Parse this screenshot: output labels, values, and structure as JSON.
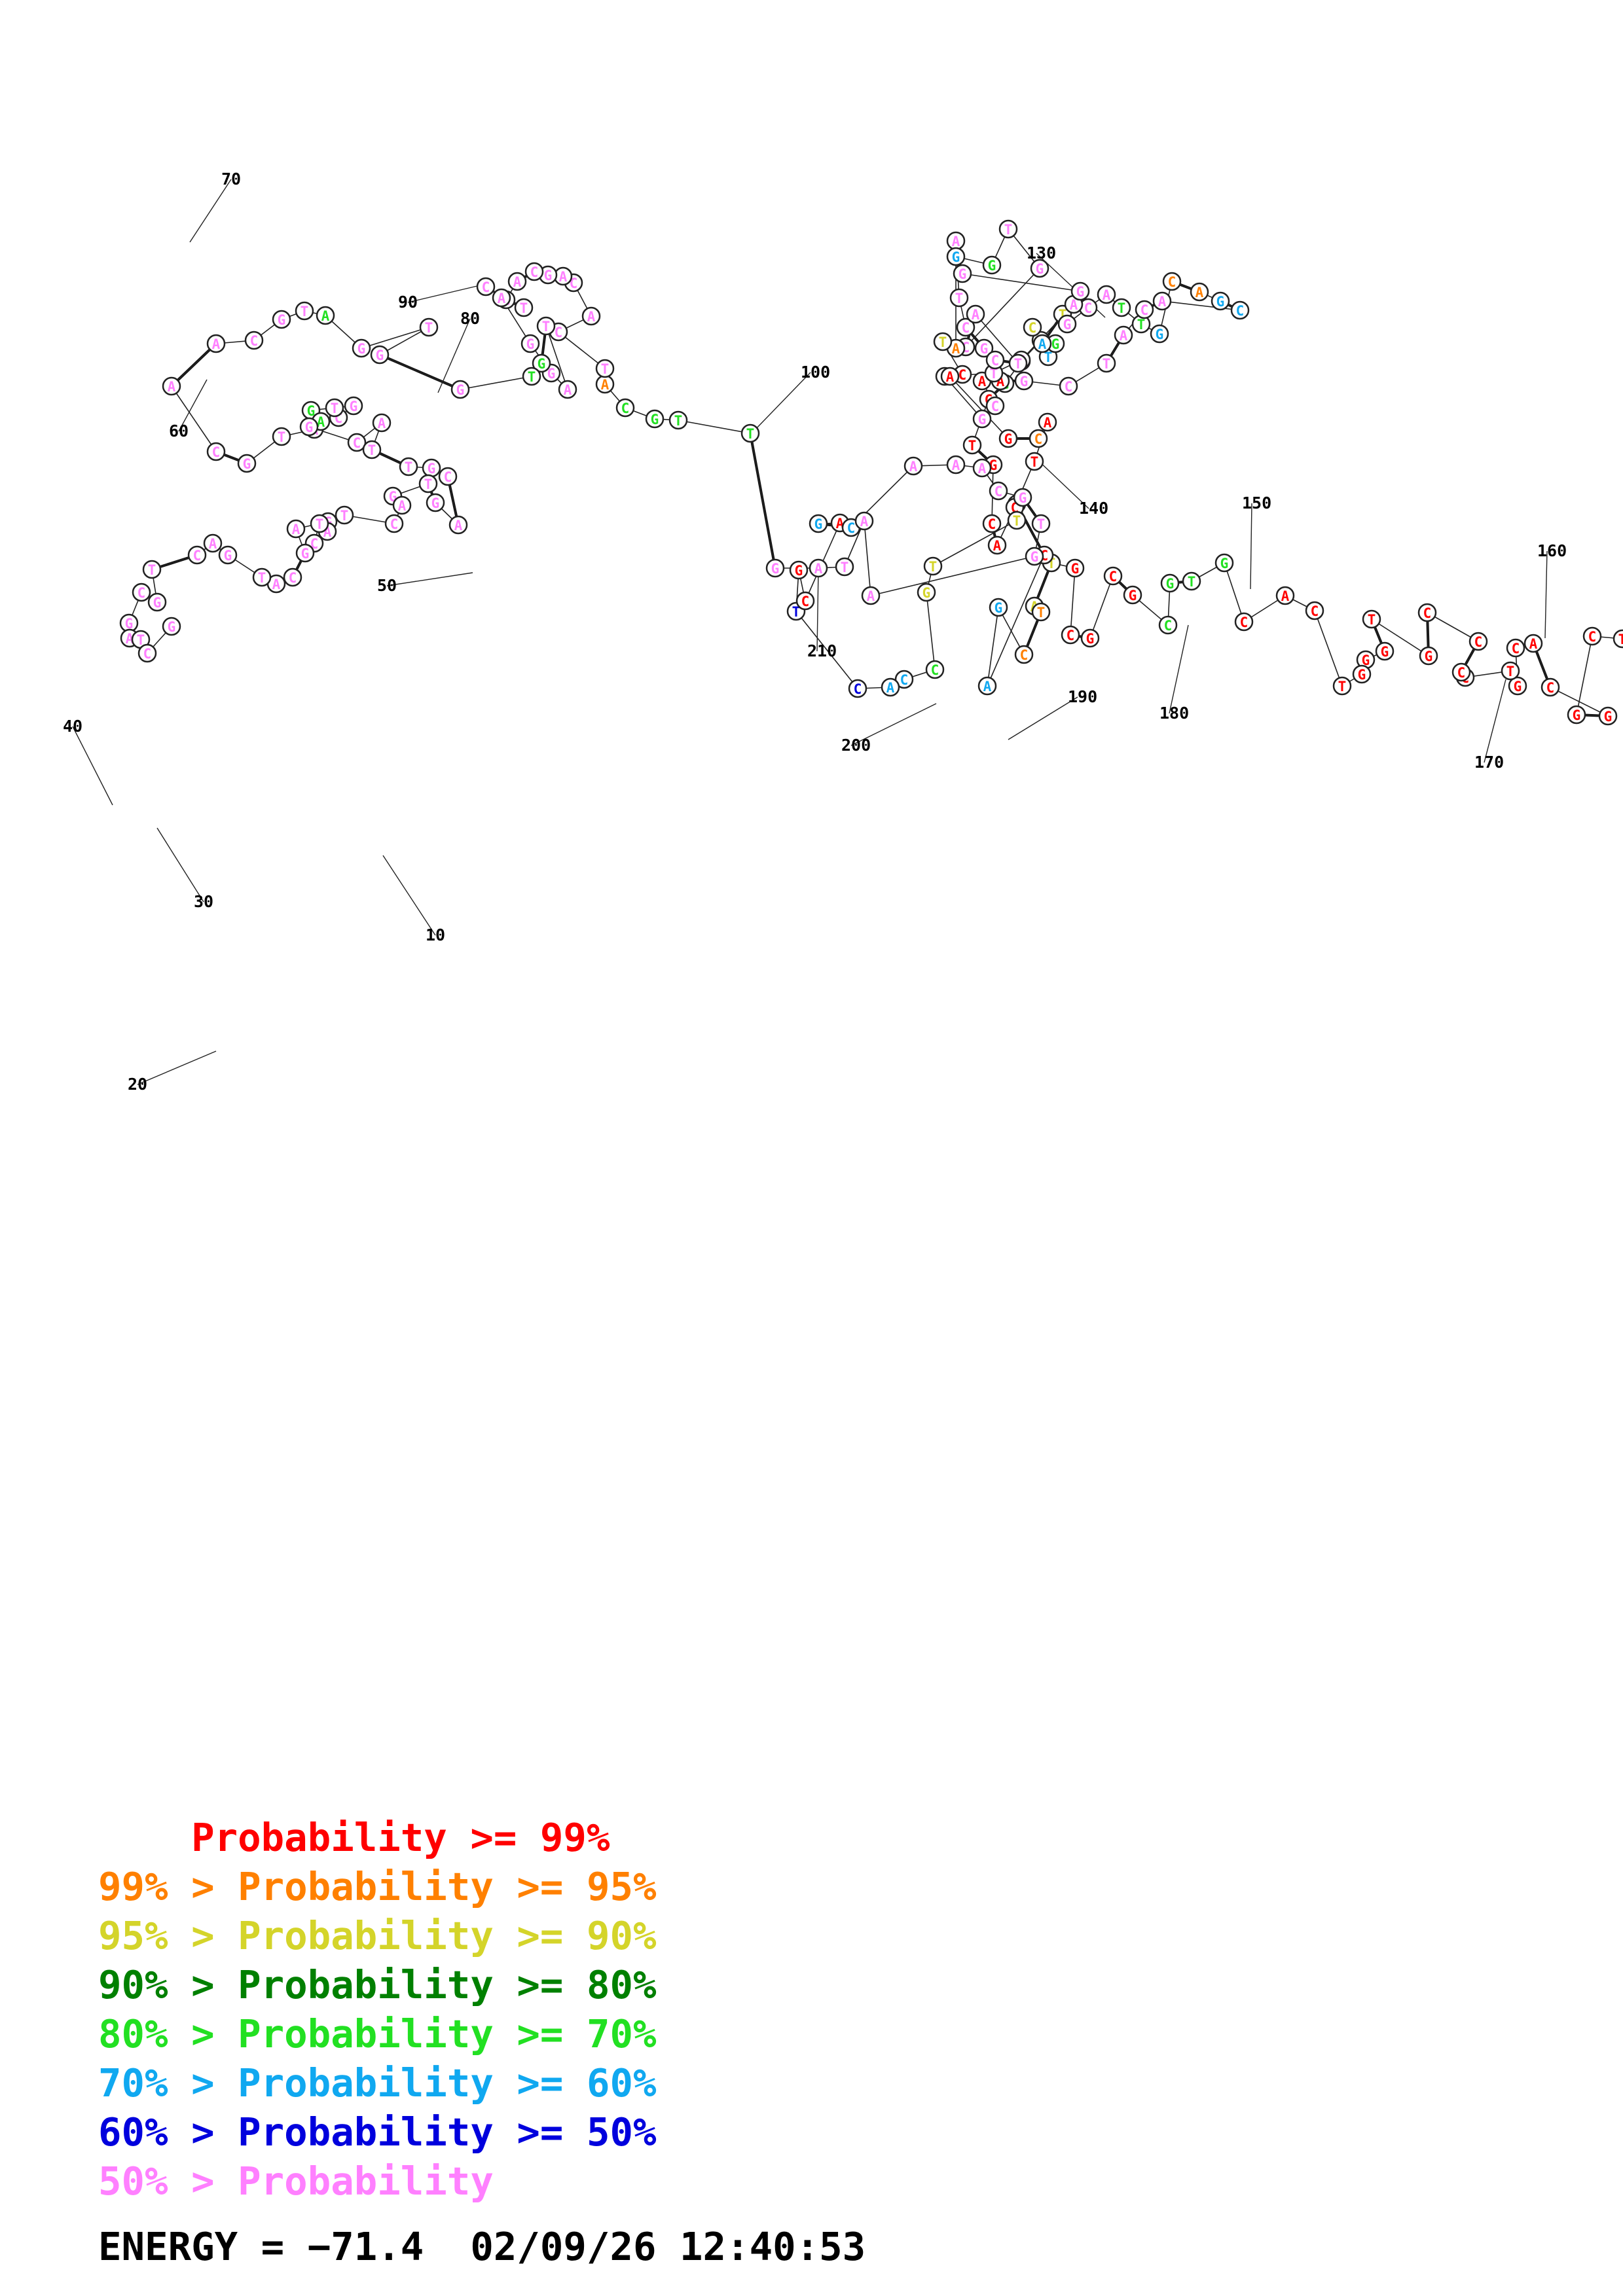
{
  "colors": {
    "red": "#ff0000",
    "orange": "#ff8000",
    "yellow": "#d4d42a",
    "darkgreen": "#008000",
    "green": "#22e022",
    "cyan": "#10a8f0",
    "blue": "#0000dd",
    "pink": "#ff80ff"
  },
  "nucleotides": [
    {
      "b": "T",
      "c": "red"
    },
    {
      "b": "C",
      "c": "red"
    },
    {
      "b": "G",
      "c": "red"
    },
    {
      "b": "G",
      "c": "red"
    },
    {
      "b": "C",
      "c": "red"
    },
    {
      "b": "A",
      "c": "red"
    },
    {
      "b": "C",
      "c": "red"
    },
    {
      "b": "G",
      "c": "red"
    },
    {
      "b": "T",
      "c": "red"
    },
    {
      "b": "C",
      "c": "red"
    },
    {
      "b": "C",
      "c": "red"
    },
    {
      "b": "C",
      "c": "red"
    },
    {
      "b": "C",
      "c": "red"
    },
    {
      "b": "G",
      "c": "red"
    },
    {
      "b": "T",
      "c": "red"
    },
    {
      "b": "G",
      "c": "red"
    },
    {
      "b": "G",
      "c": "red"
    },
    {
      "b": "G",
      "c": "red"
    },
    {
      "b": "T",
      "c": "red"
    },
    {
      "b": "C",
      "c": "red"
    },
    {
      "b": "A",
      "c": "red"
    },
    {
      "b": "C",
      "c": "red"
    },
    {
      "b": "G",
      "c": "green"
    },
    {
      "b": "T",
      "c": "green"
    },
    {
      "b": "G",
      "c": "green"
    },
    {
      "b": "C",
      "c": "green"
    },
    {
      "b": "G",
      "c": "red"
    },
    {
      "b": "C",
      "c": "red"
    },
    {
      "b": "G",
      "c": "red"
    },
    {
      "b": "C",
      "c": "red"
    },
    {
      "b": "G",
      "c": "red"
    },
    {
      "b": "T",
      "c": "yellow"
    },
    {
      "b": "A",
      "c": "yellow"
    },
    {
      "b": "T",
      "c": "orange"
    },
    {
      "b": "C",
      "c": "orange"
    },
    {
      "b": "G",
      "c": "cyan"
    },
    {
      "b": "A",
      "c": "cyan"
    },
    {
      "b": "C",
      "c": "red"
    },
    {
      "b": "T",
      "c": "red"
    },
    {
      "b": "A",
      "c": "red"
    },
    {
      "b": "C",
      "c": "red"
    },
    {
      "b": "G",
      "c": "red"
    },
    {
      "b": "T",
      "c": "red"
    },
    {
      "b": "C",
      "c": "red"
    },
    {
      "b": "G",
      "c": "green"
    },
    {
      "b": "A",
      "c": "cyan"
    },
    {
      "b": "G",
      "c": "yellow"
    },
    {
      "b": "C",
      "c": "yellow"
    },
    {
      "b": "T",
      "c": "cyan"
    },
    {
      "b": "G",
      "c": "green"
    },
    {
      "b": "A",
      "c": "cyan"
    },
    {
      "b": "T",
      "c": "yellow"
    },
    {
      "b": "G",
      "c": "pink"
    },
    {
      "b": "C",
      "c": "pink"
    },
    {
      "b": "A",
      "c": "pink"
    },
    {
      "b": "T",
      "c": "green"
    },
    {
      "b": "T",
      "c": "green"
    },
    {
      "b": "G",
      "c": "cyan"
    },
    {
      "b": "C",
      "c": "orange"
    },
    {
      "b": "A",
      "c": "orange"
    },
    {
      "b": "G",
      "c": "cyan"
    },
    {
      "b": "C",
      "c": "cyan"
    },
    {
      "b": "A",
      "c": "pink"
    },
    {
      "b": "C",
      "c": "pink"
    },
    {
      "b": "A",
      "c": "pink"
    },
    {
      "b": "T",
      "c": "pink"
    },
    {
      "b": "C",
      "c": "pink"
    },
    {
      "b": "G",
      "c": "pink"
    },
    {
      "b": "A",
      "c": "red"
    },
    {
      "b": "A",
      "c": "red"
    },
    {
      "b": "C",
      "c": "pink"
    },
    {
      "b": "G",
      "c": "pink"
    },
    {
      "b": "C",
      "c": "pink"
    },
    {
      "b": "T",
      "c": "pink"
    },
    {
      "b": "G",
      "c": "pink"
    },
    {
      "b": "A",
      "c": "pink"
    },
    {
      "b": "G",
      "c": "pink"
    },
    {
      "b": "G",
      "c": "pink"
    },
    {
      "b": "A",
      "c": "pink"
    },
    {
      "b": "T",
      "c": "pink"
    },
    {
      "b": "C",
      "c": "pink"
    },
    {
      "b": "G",
      "c": "pink"
    },
    {
      "b": "C",
      "c": "pink"
    },
    {
      "b": "T",
      "c": "pink"
    },
    {
      "b": "A",
      "c": "pink"
    },
    {
      "b": "C",
      "c": "pink"
    },
    {
      "b": "G",
      "c": "pink"
    },
    {
      "b": "T",
      "c": "pink"
    },
    {
      "b": "G",
      "c": "green"
    },
    {
      "b": "G",
      "c": "cyan"
    },
    {
      "b": "A",
      "c": "orange"
    },
    {
      "b": "T",
      "c": "yellow"
    },
    {
      "b": "C",
      "c": "red"
    },
    {
      "b": "A",
      "c": "red"
    },
    {
      "b": "G",
      "c": "red"
    },
    {
      "b": "C",
      "c": "orange"
    },
    {
      "b": "A",
      "c": "red"
    },
    {
      "b": "T",
      "c": "red"
    },
    {
      "b": "C",
      "c": "red"
    },
    {
      "b": "T",
      "c": "yellow"
    },
    {
      "b": "T",
      "c": "yellow"
    },
    {
      "b": "G",
      "c": "yellow"
    },
    {
      "b": "C",
      "c": "green"
    },
    {
      "b": "C",
      "c": "cyan"
    },
    {
      "b": "A",
      "c": "cyan"
    },
    {
      "b": "C",
      "c": "blue"
    },
    {
      "b": "T",
      "c": "blue"
    },
    {
      "b": "G",
      "c": "red"
    },
    {
      "b": "C",
      "c": "red"
    },
    {
      "b": "A",
      "c": "red"
    },
    {
      "b": "G",
      "c": "cyan"
    },
    {
      "b": "C",
      "c": "cyan"
    },
    {
      "b": "A",
      "c": "pink"
    },
    {
      "b": "A",
      "c": "pink"
    },
    {
      "b": "A",
      "c": "pink"
    },
    {
      "b": "C",
      "c": "pink"
    },
    {
      "b": "G",
      "c": "pink"
    },
    {
      "b": "T",
      "c": "pink"
    },
    {
      "b": "G",
      "c": "pink"
    },
    {
      "b": "A",
      "c": "pink"
    },
    {
      "b": "A",
      "c": "pink"
    },
    {
      "b": "T",
      "c": "pink"
    },
    {
      "b": "A",
      "c": "pink"
    },
    {
      "b": "G",
      "c": "pink"
    },
    {
      "b": "T",
      "c": "green"
    },
    {
      "b": "T",
      "c": "green"
    },
    {
      "b": "G",
      "c": "green"
    },
    {
      "b": "C",
      "c": "green"
    },
    {
      "b": "A",
      "c": "orange"
    },
    {
      "b": "T",
      "c": "pink"
    },
    {
      "b": "C",
      "c": "pink"
    },
    {
      "b": "A",
      "c": "pink"
    },
    {
      "b": "C",
      "c": "pink"
    },
    {
      "b": "A",
      "c": "pink"
    },
    {
      "b": "G",
      "c": "pink"
    },
    {
      "b": "C",
      "c": "pink"
    },
    {
      "b": "A",
      "c": "pink"
    },
    {
      "b": "G",
      "c": "pink"
    },
    {
      "b": "T",
      "c": "pink"
    },
    {
      "b": "C",
      "c": "pink"
    },
    {
      "b": "A",
      "c": "pink"
    },
    {
      "b": "G",
      "c": "pink"
    },
    {
      "b": "G",
      "c": "pink"
    },
    {
      "b": "A",
      "c": "pink"
    },
    {
      "b": "T",
      "c": "pink"
    },
    {
      "b": "G",
      "c": "green"
    },
    {
      "b": "T",
      "c": "green"
    },
    {
      "b": "G",
      "c": "pink"
    },
    {
      "b": "G",
      "c": "pink"
    },
    {
      "b": "T",
      "c": "pink"
    },
    {
      "b": "G",
      "c": "pink"
    },
    {
      "b": "A",
      "c": "green"
    },
    {
      "b": "T",
      "c": "pink"
    },
    {
      "b": "G",
      "c": "pink"
    },
    {
      "b": "C",
      "c": "pink"
    },
    {
      "b": "A",
      "c": "pink"
    },
    {
      "b": "A",
      "c": "pink"
    },
    {
      "b": "C",
      "c": "pink"
    },
    {
      "b": "G",
      "c": "pink"
    },
    {
      "b": "T",
      "c": "pink"
    },
    {
      "b": "A",
      "c": "pink"
    },
    {
      "b": "C",
      "c": "pink"
    },
    {
      "b": "G",
      "c": "pink"
    },
    {
      "b": "T",
      "c": "pink"
    },
    {
      "b": "G",
      "c": "green"
    },
    {
      "b": "A",
      "c": "green"
    },
    {
      "b": "G",
      "c": "pink"
    },
    {
      "b": "C",
      "c": "pink"
    },
    {
      "b": "A",
      "c": "pink"
    },
    {
      "b": "T",
      "c": "pink"
    },
    {
      "b": "T",
      "c": "pink"
    },
    {
      "b": "G",
      "c": "pink"
    },
    {
      "b": "C",
      "c": "pink"
    },
    {
      "b": "A",
      "c": "pink"
    },
    {
      "b": "G",
      "c": "pink"
    },
    {
      "b": "T",
      "c": "pink"
    },
    {
      "b": "G",
      "c": "pink"
    },
    {
      "b": "A",
      "c": "pink"
    },
    {
      "b": "C",
      "c": "pink"
    },
    {
      "b": "T",
      "c": "pink"
    },
    {
      "b": "G",
      "c": "pink"
    },
    {
      "b": "A",
      "c": "pink"
    },
    {
      "b": "C",
      "c": "pink"
    },
    {
      "b": "T",
      "c": "pink"
    },
    {
      "b": "A",
      "c": "pink"
    },
    {
      "b": "G",
      "c": "pink"
    },
    {
      "b": "C",
      "c": "pink"
    },
    {
      "b": "A",
      "c": "pink"
    },
    {
      "b": "T",
      "c": "pink"
    },
    {
      "b": "G",
      "c": "pink"
    },
    {
      "b": "A",
      "c": "pink"
    },
    {
      "b": "C",
      "c": "pink"
    },
    {
      "b": "T",
      "c": "pink"
    },
    {
      "b": "G",
      "c": "pink"
    },
    {
      "b": "C",
      "c": "pink"
    },
    {
      "b": "G",
      "c": "pink"
    },
    {
      "b": "A",
      "c": "pink"
    },
    {
      "b": "T",
      "c": "pink"
    },
    {
      "b": "C",
      "c": "pink"
    },
    {
      "b": "G",
      "c": "pink"
    }
  ],
  "numbers": [
    "10",
    "20",
    "30",
    "40",
    "50",
    "60",
    "70",
    "80",
    "90",
    "100",
    "130",
    "140",
    "150",
    "160",
    "170",
    "180",
    "190",
    "200",
    "210"
  ],
  "legend": [
    {
      "prefix": "    ",
      "text": "Probability >= 99%",
      "c": "red"
    },
    {
      "prefix": "99% > ",
      "text": "Probability >= 95%",
      "c": "orange"
    },
    {
      "prefix": "95% > ",
      "text": "Probability >= 90%",
      "c": "yellow"
    },
    {
      "prefix": "90% > ",
      "text": "Probability >= 80%",
      "c": "darkgreen"
    },
    {
      "prefix": "80% > ",
      "text": "Probability >= 70%",
      "c": "green"
    },
    {
      "prefix": "70% > ",
      "text": "Probability >= 60%",
      "c": "cyan"
    },
    {
      "prefix": "60% > ",
      "text": "Probability >= 50%",
      "c": "blue"
    },
    {
      "prefix": "50% > ",
      "text": "Probability",
      "c": "pink"
    }
  ],
  "footer": {
    "energy_label": "ENERGY = −71.4",
    "timestamp": "02/09/26 12:40:53"
  }
}
